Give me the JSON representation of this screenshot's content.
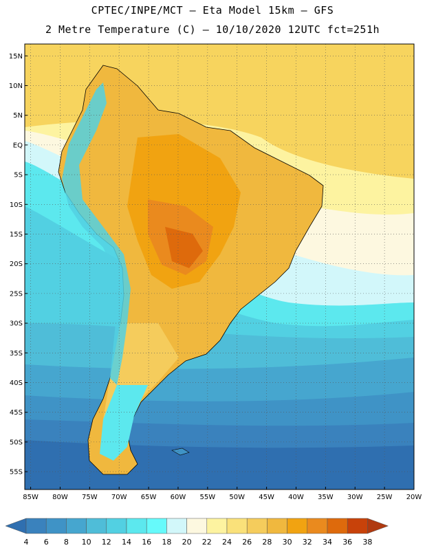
{
  "header": {
    "line1": "CPTEC/INPE/MCT –  Eta Model 15km – GFS",
    "line2": "2 Metre Temperature (C) – 10/10/2020 12UTC fct=251h"
  },
  "map": {
    "lat_range": [
      -58,
      17
    ],
    "lon_range": [
      -86,
      -20
    ],
    "lat_labels": [
      "15N",
      "10N",
      "5N",
      "EQ",
      "5S",
      "10S",
      "15S",
      "20S",
      "25S",
      "30S",
      "35S",
      "40S",
      "45S",
      "50S",
      "55S"
    ],
    "lat_values": [
      15,
      10,
      5,
      0,
      -5,
      -10,
      -15,
      -20,
      -25,
      -30,
      -35,
      -40,
      -45,
      -50,
      -55
    ],
    "lon_labels": [
      "85W",
      "80W",
      "75W",
      "70W",
      "65W",
      "60W",
      "55W",
      "50W",
      "45W",
      "40W",
      "35W",
      "30W",
      "25W",
      "20W"
    ],
    "lon_values": [
      -85,
      -80,
      -75,
      -70,
      -65,
      -60,
      -55,
      -50,
      -45,
      -40,
      -35,
      -30,
      -25,
      -20
    ],
    "grid": "dotted"
  },
  "colorbar": {
    "labels": [
      "4",
      "6",
      "8",
      "10",
      "12",
      "14",
      "16",
      "18",
      "20",
      "22",
      "24",
      "26",
      "28",
      "30",
      "32",
      "34",
      "36",
      "38"
    ],
    "colors": [
      "#2f6fb0",
      "#3a82bd",
      "#3f93c6",
      "#46a6cf",
      "#4fbdd8",
      "#52d0e2",
      "#5ce8ee",
      "#66fafb",
      "#d2f7fa",
      "#fdf8e0",
      "#fdf3a0",
      "#fae17a",
      "#f5cc5c",
      "#f0b83e",
      "#f1a311",
      "#ea8a1e",
      "#de6a0c",
      "#c8420a",
      "#b03a10"
    ]
  }
}
